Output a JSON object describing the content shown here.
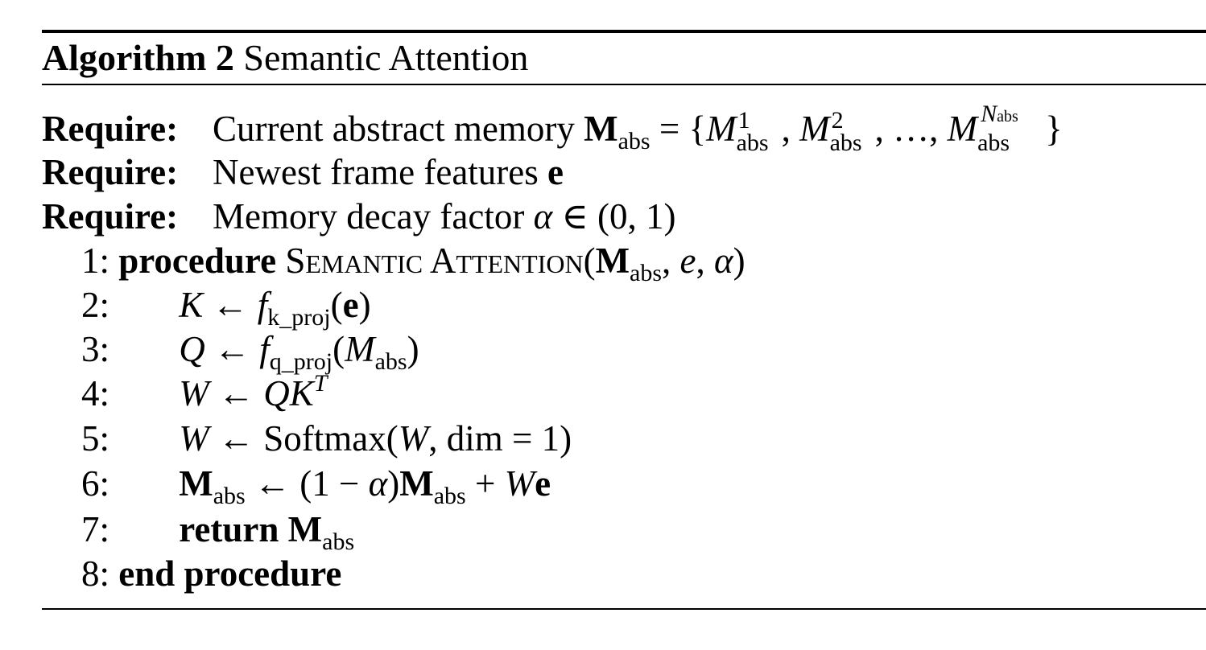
{
  "algorithm": {
    "label": "Algorithm 2",
    "title": "Semantic Attention"
  },
  "requires": [
    {
      "label": "Require:",
      "text": "Current abstract memory"
    },
    {
      "label": "Require:",
      "text": "Newest frame features"
    },
    {
      "label": "Require:",
      "text": "Memory decay factor"
    }
  ],
  "math": {
    "M_bold": "M",
    "M_it": "M",
    "abs": "abs",
    "e_bold": "e",
    "e_it": "e",
    "alpha": "α",
    "eq": "=",
    "lbrace": "{",
    "rbrace": "}",
    "comma": ",",
    "ellipsis": "…",
    "sup1": "1",
    "sup2": "2",
    "supN": "N",
    "in": "∈",
    "interval": "(0, 1)",
    "arrow": "←"
  },
  "lines": [
    {
      "num": "1:",
      "keyword": "procedure",
      "name": "Semantic Attention"
    },
    {
      "num": "2:"
    },
    {
      "num": "3:"
    },
    {
      "num": "4:"
    },
    {
      "num": "5:",
      "softmax": "Softmax",
      "dim": "dim",
      "one": "1"
    },
    {
      "num": "6:",
      "one_minus": "(1 − "
    },
    {
      "num": "7:",
      "keyword": "return"
    },
    {
      "num": "8:",
      "keyword": "end procedure"
    }
  ],
  "symbols": {
    "K": "K",
    "Q": "Q",
    "W": "W",
    "f": "f",
    "k_proj": "k_proj",
    "q_proj": "q_proj",
    "T": "T",
    "plus": "+"
  }
}
